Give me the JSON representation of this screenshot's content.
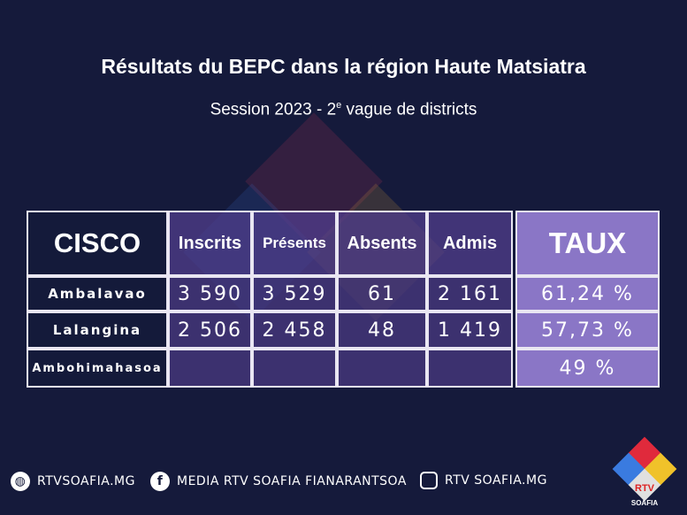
{
  "title": "Résultats du BEPC dans la région Haute Matsiatra",
  "subtitle": {
    "before": "Session 2023 - 2",
    "sup": "e",
    "after": " vague de districts"
  },
  "table": {
    "headers": [
      "CISCO",
      "Inscrits",
      "Présents",
      "Absents",
      "Admis",
      "TAUX"
    ],
    "rows": [
      [
        "Ambalavao",
        "3 590",
        "3 529",
        "61",
        "2 161",
        "61,24 %"
      ],
      [
        "Lalangina",
        "2 506",
        "2 458",
        "48",
        "1 419",
        "57,73 %"
      ],
      [
        "Ambohimahasoa",
        null,
        null,
        null,
        null,
        "49 %"
      ]
    ]
  },
  "footer": {
    "website": "RTVSOAFIA.MG",
    "facebook": "MEDIA RTV SOAFIA FIANARANTSOA",
    "instagram": "RTV SOAFIA.MG"
  },
  "logo": {
    "name": "RTV",
    "subname": "SOAFIA"
  }
}
